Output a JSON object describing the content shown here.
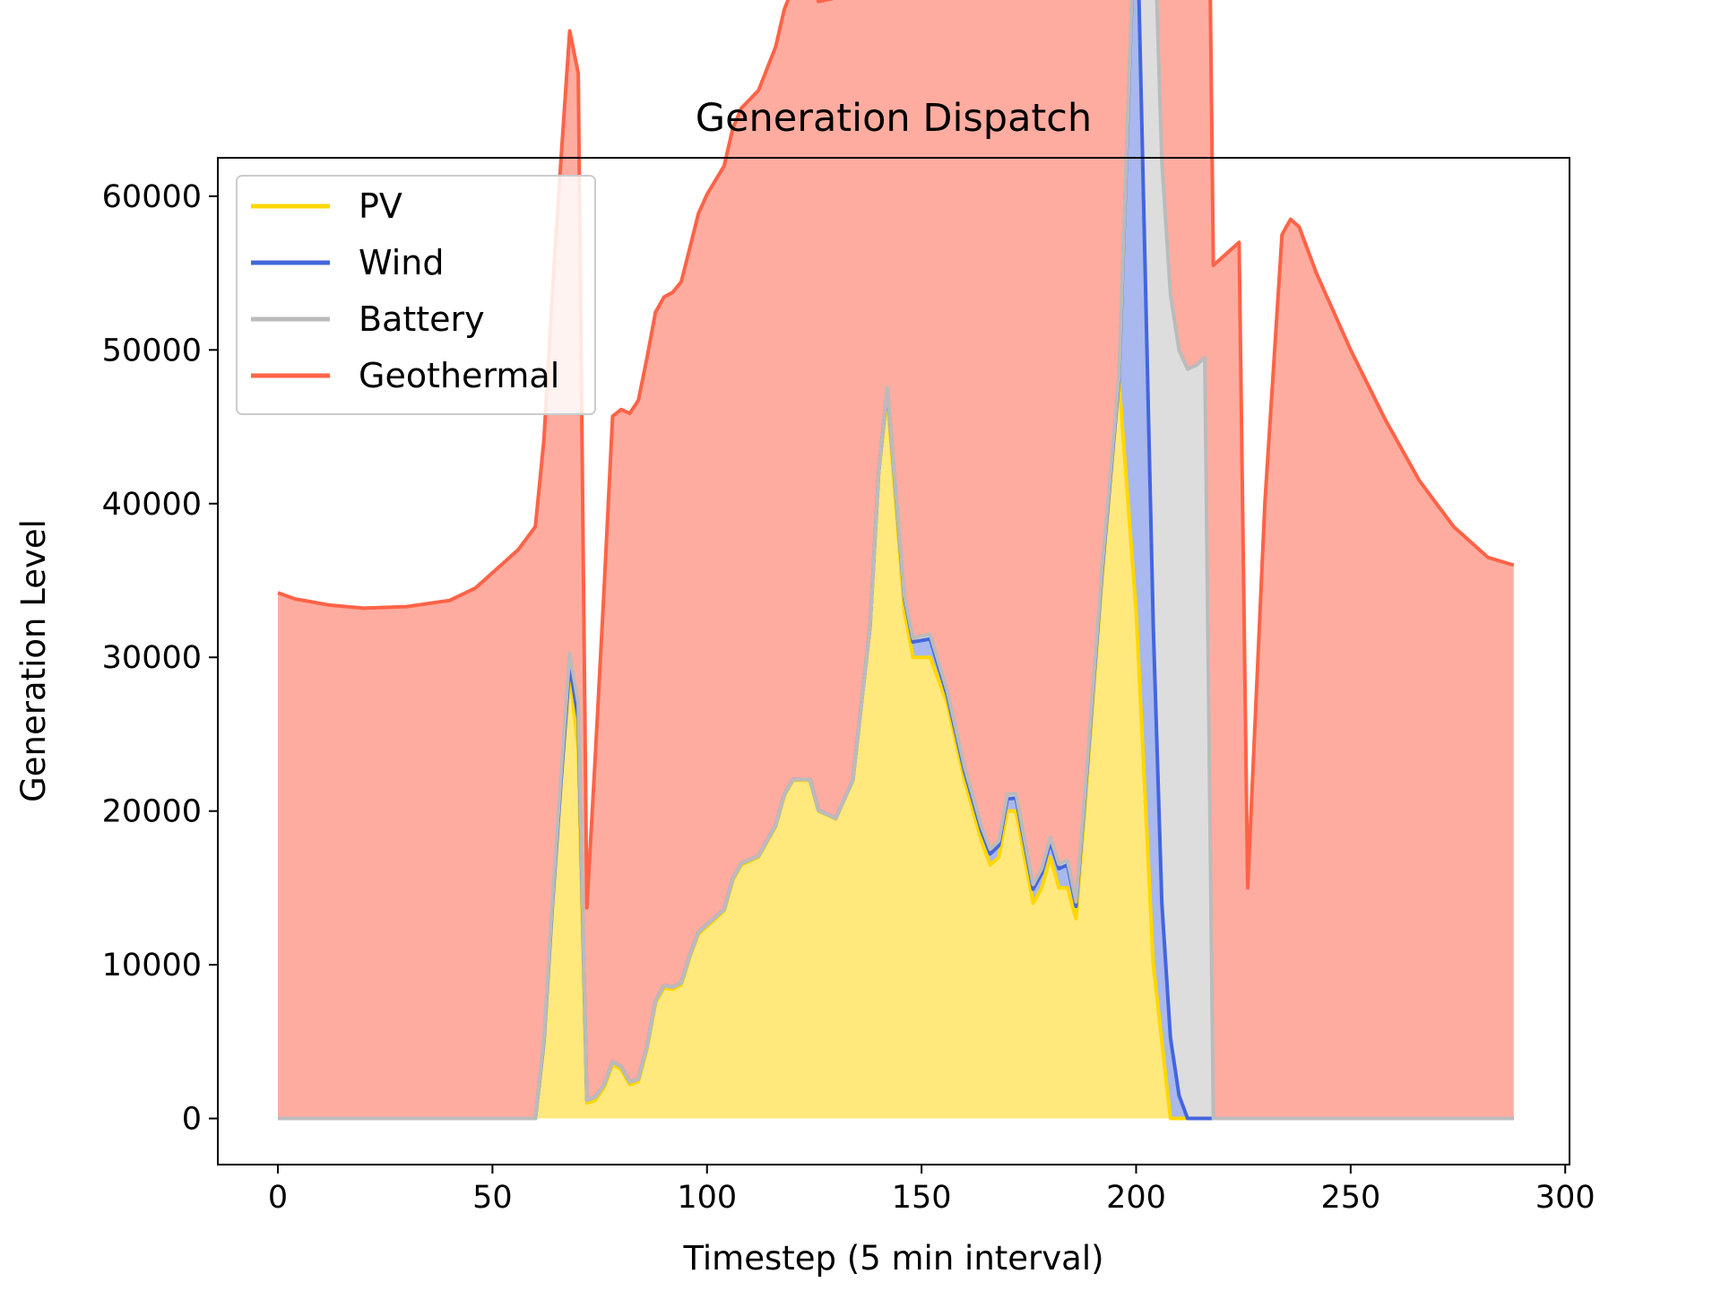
{
  "chart_data": {
    "type": "area",
    "title": "Generation Dispatch",
    "xlabel": "Timestep (5 min interval)",
    "ylabel": "Generation Level",
    "xlim": [
      -14,
      301
    ],
    "ylim": [
      -3000,
      62500
    ],
    "xticks": [
      0,
      50,
      100,
      150,
      200,
      250,
      300
    ],
    "yticks": [
      0,
      10000,
      20000,
      30000,
      40000,
      50000,
      60000
    ],
    "xtick_labels": [
      "0",
      "50",
      "100",
      "150",
      "200",
      "250",
      "300"
    ],
    "ytick_labels": [
      "0",
      "10000",
      "20000",
      "30000",
      "40000",
      "50000",
      "60000"
    ],
    "grid": false,
    "legend_position": "top-left",
    "stacked": true,
    "series": [
      {
        "name": "PV",
        "color": "#FFD700",
        "fill": "#FFE87C",
        "points": [
          [
            0,
            0
          ],
          [
            60,
            0
          ],
          [
            62,
            5000
          ],
          [
            64,
            14000
          ],
          [
            66,
            22000
          ],
          [
            68,
            29000
          ],
          [
            70,
            24000
          ],
          [
            72,
            1000
          ],
          [
            74,
            1200
          ],
          [
            76,
            2000
          ],
          [
            78,
            3500
          ],
          [
            80,
            3200
          ],
          [
            82,
            2200
          ],
          [
            84,
            2400
          ],
          [
            86,
            4500
          ],
          [
            88,
            7500
          ],
          [
            90,
            8500
          ],
          [
            92,
            8400
          ],
          [
            94,
            8700
          ],
          [
            96,
            10500
          ],
          [
            98,
            12000
          ],
          [
            100,
            12500
          ],
          [
            104,
            13500
          ],
          [
            106,
            15500
          ],
          [
            108,
            16500
          ],
          [
            112,
            17000
          ],
          [
            116,
            19000
          ],
          [
            118,
            21000
          ],
          [
            120,
            22000
          ],
          [
            124,
            22000
          ],
          [
            126,
            20000
          ],
          [
            130,
            19500
          ],
          [
            134,
            22000
          ],
          [
            138,
            32000
          ],
          [
            140,
            42000
          ],
          [
            142,
            47000
          ],
          [
            144,
            40000
          ],
          [
            146,
            33000
          ],
          [
            148,
            30000
          ],
          [
            152,
            30000
          ],
          [
            156,
            27000
          ],
          [
            160,
            22000
          ],
          [
            164,
            18000
          ],
          [
            166,
            16500
          ],
          [
            168,
            17000
          ],
          [
            170,
            20000
          ],
          [
            172,
            20000
          ],
          [
            174,
            17000
          ],
          [
            176,
            14000
          ],
          [
            178,
            15000
          ],
          [
            180,
            17000
          ],
          [
            182,
            15000
          ],
          [
            184,
            15000
          ],
          [
            186,
            13000
          ],
          [
            188,
            20000
          ],
          [
            192,
            35000
          ],
          [
            196,
            48000
          ],
          [
            200,
            33000
          ],
          [
            204,
            10000
          ],
          [
            208,
            0
          ],
          [
            288,
            0
          ]
        ]
      },
      {
        "name": "Wind",
        "color": "#4466DD",
        "fill": "#A9B8EE",
        "points": [
          [
            0,
            0
          ],
          [
            66,
            0
          ],
          [
            68,
            500
          ],
          [
            70,
            2000
          ],
          [
            72,
            200
          ],
          [
            140,
            0
          ],
          [
            142,
            500
          ],
          [
            148,
            1000
          ],
          [
            152,
            1200
          ],
          [
            156,
            500
          ],
          [
            170,
            800
          ],
          [
            180,
            1000
          ],
          [
            184,
            1500
          ],
          [
            186,
            800
          ],
          [
            196,
            0
          ],
          [
            200,
            48000
          ],
          [
            206,
            9000
          ],
          [
            210,
            1500
          ],
          [
            212,
            0
          ],
          [
            288,
            0
          ]
        ]
      },
      {
        "name": "Battery",
        "color": "#BBBBBB",
        "fill": "#DDDDDD",
        "points": [
          [
            0,
            0
          ],
          [
            60,
            0
          ],
          [
            66,
            500
          ],
          [
            70,
            1000
          ],
          [
            72,
            0
          ],
          [
            140,
            0
          ],
          [
            150,
            300
          ],
          [
            196,
            300
          ],
          [
            200,
            300
          ],
          [
            202,
            48000
          ],
          [
            210,
            48500
          ],
          [
            214,
            49000
          ],
          [
            216,
            49500
          ],
          [
            218,
            0
          ],
          [
            288,
            0
          ]
        ]
      },
      {
        "name": "Geothermal",
        "color": "#FF6347",
        "fill": "#FFACA0",
        "points": [
          [
            0,
            34200
          ],
          [
            4,
            33800
          ],
          [
            12,
            33400
          ],
          [
            20,
            33200
          ],
          [
            30,
            33300
          ],
          [
            40,
            33700
          ],
          [
            46,
            34500
          ],
          [
            50,
            35500
          ],
          [
            56,
            37000
          ],
          [
            60,
            38500
          ],
          [
            66,
            40000
          ],
          [
            70,
            41000
          ],
          [
            72,
            12500
          ],
          [
            78,
            42000
          ],
          [
            82,
            43500
          ],
          [
            86,
            44800
          ],
          [
            90,
            44800
          ],
          [
            96,
            46000
          ],
          [
            100,
            47500
          ],
          [
            106,
            48800
          ],
          [
            112,
            49800
          ],
          [
            120,
            51500
          ],
          [
            128,
            53000
          ],
          [
            136,
            54500
          ],
          [
            144,
            55500
          ],
          [
            152,
            57000
          ],
          [
            160,
            58500
          ],
          [
            168,
            59200
          ],
          [
            176,
            59500
          ],
          [
            182,
            59700
          ],
          [
            188,
            59500
          ],
          [
            196,
            58500
          ],
          [
            204,
            57000
          ],
          [
            210,
            55500
          ],
          [
            216,
            55000
          ],
          [
            220,
            56000
          ],
          [
            224,
            57000
          ],
          [
            226,
            15000
          ],
          [
            230,
            40000
          ],
          [
            234,
            57500
          ],
          [
            236,
            58500
          ],
          [
            238,
            58000
          ],
          [
            242,
            55000
          ],
          [
            250,
            50000
          ],
          [
            258,
            45500
          ],
          [
            266,
            41500
          ],
          [
            274,
            38500
          ],
          [
            282,
            36500
          ],
          [
            288,
            36000
          ]
        ]
      }
    ]
  }
}
